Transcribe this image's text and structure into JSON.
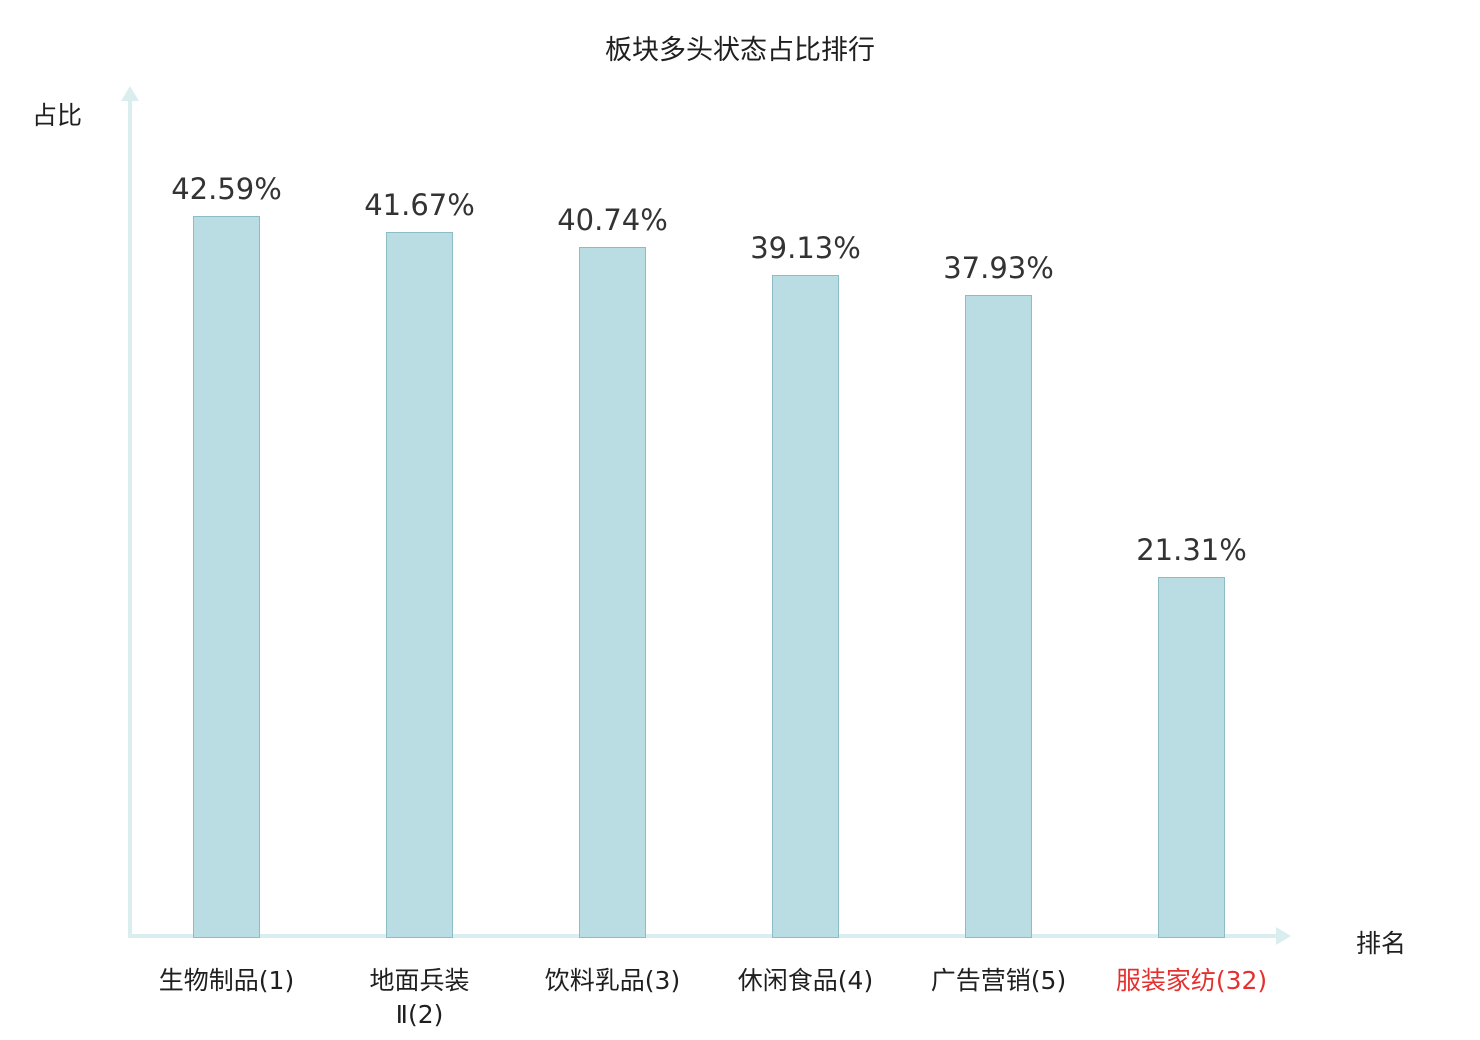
{
  "title": "板块多头状态占比排行",
  "chart_data": {
    "type": "bar",
    "title": "板块多头状态占比排行",
    "xlabel": "排名",
    "ylabel": "占比",
    "categories": [
      "生物制品(1)",
      "地面兵装Ⅱ(2)",
      "饮料乳品(3)",
      "休闲食品(4)",
      "广告营销(5)",
      "服装家纺(32)"
    ],
    "category_display": [
      "生物制品(1)",
      "地面兵装\nⅡ(2)",
      "饮料乳品(3)",
      "休闲食品(4)",
      "广告营销(5)",
      "服装家纺(32)"
    ],
    "values": [
      42.59,
      41.67,
      40.74,
      39.13,
      37.93,
      21.31
    ],
    "value_labels": [
      "42.59%",
      "41.67%",
      "40.74%",
      "39.13%",
      "37.93%",
      "21.31%"
    ],
    "highlight_index": 5,
    "ylim": [
      0,
      50
    ],
    "grid": false,
    "legend_position": "none",
    "colors": {
      "bar_fill": "#b9dde3",
      "bar_border": "#8cbcc5",
      "axis": "#daeef0",
      "value_label": "#333333",
      "category_label": "#1f1f1f",
      "highlight_label": "#e53030",
      "title": "#1f1f1f"
    }
  }
}
